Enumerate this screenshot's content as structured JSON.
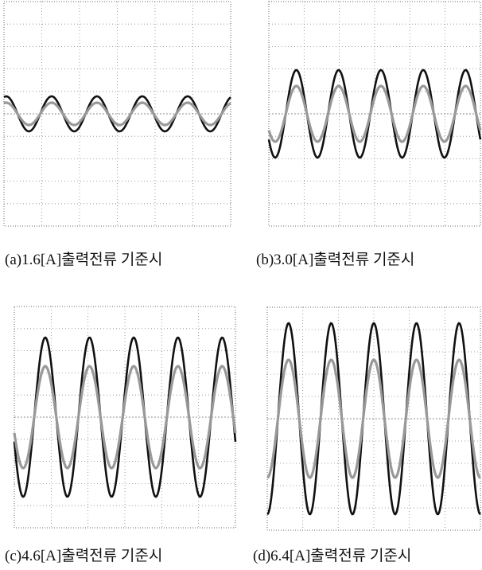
{
  "panels": [
    {
      "caption": "(a)1.6[A]출력전류 기준시"
    },
    {
      "caption": "(b)3.0[A]출력전류 기준시"
    },
    {
      "caption": "(c)4.6[A]출력전류 기준시"
    },
    {
      "caption": "(d)6.4[A]출력전류 기준시"
    }
  ]
}
